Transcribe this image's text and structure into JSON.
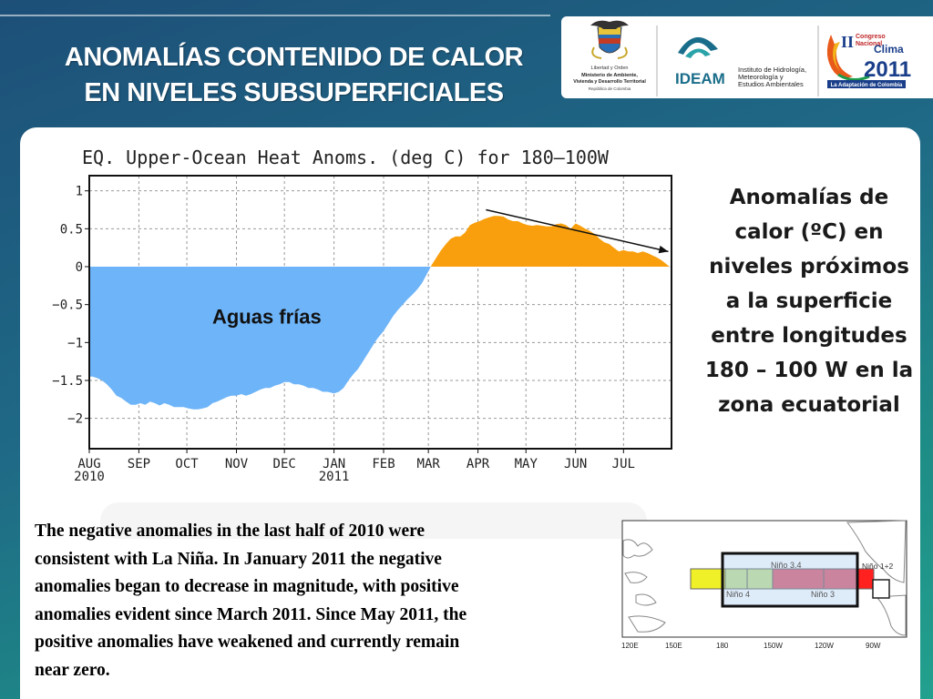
{
  "slide": {
    "title_line1": "ANOMALÍAS CONTENIDO DE CALOR",
    "title_line2": "EN NIVELES SUBSUPERFICIALES"
  },
  "logos": {
    "ministry": {
      "lines": [
        "Libertad y Orden",
        "Ministerio de Ambiente,",
        "Vivienda y Desarrollo Territorial",
        "República de Colombia"
      ],
      "icon": "coat-of-arms-icon"
    },
    "ideam": {
      "name": "IDEAM",
      "subtitle_lines": [
        "Instituto de Hidrología,",
        "Meteorología y",
        "Estudios Ambientales"
      ],
      "icon": "ideam-eye-icon",
      "color": "#1a6d8a"
    },
    "congreso": {
      "numeral": "II",
      "line1": "Congreso",
      "line2": "Nacional",
      "line3": "Clima",
      "year": "2011",
      "banner": "La Adaptación de Colombia",
      "icon": "congreso-clima-icon"
    }
  },
  "chart_data": {
    "type": "area",
    "title": "EQ. Upper-Ocean Heat Anoms. (deg C) for 180–100W",
    "xlabel": "",
    "ylabel": "",
    "x_range": [
      "2010-08-01",
      "2011-07-31"
    ],
    "ylim": [
      -2.4,
      1.2
    ],
    "yticks": [
      1,
      0.5,
      0,
      -0.5,
      -1,
      -1.5,
      -2
    ],
    "ytick_labels": [
      "1",
      "0.5",
      "0",
      "−0.5",
      "−1",
      "−1.5",
      "−2"
    ],
    "xticks": [
      "2010-08-01",
      "2010-09-01",
      "2010-10-01",
      "2010-11-01",
      "2010-12-01",
      "2011-01-01",
      "2011-02-01",
      "2011-03-01",
      "2011-04-01",
      "2011-05-01",
      "2011-06-01",
      "2011-07-01"
    ],
    "xtick_labels": [
      "AUG",
      "SEP",
      "OCT",
      "NOV",
      "DEC",
      "JAN",
      "FEB",
      "MAR",
      "APR",
      "MAY",
      "JUN",
      "JUL"
    ],
    "year_labels": [
      {
        "at": "2010-08-01",
        "text": "2010"
      },
      {
        "at": "2011-01-01",
        "text": "2011"
      }
    ],
    "grid": true,
    "positive_color": "#f99f0d",
    "negative_color": "#6eb4f8",
    "series": [
      {
        "x": [
          "2010-08-01",
          "2010-08-03",
          "2010-08-06",
          "2010-08-09",
          "2010-08-12",
          "2010-08-15",
          "2010-08-18",
          "2010-08-21",
          "2010-08-24",
          "2010-08-27",
          "2010-08-30",
          "2010-09-02",
          "2010-09-05",
          "2010-09-08",
          "2010-09-11",
          "2010-09-14",
          "2010-09-17",
          "2010-09-20",
          "2010-09-23",
          "2010-09-26",
          "2010-09-29",
          "2010-10-02",
          "2010-10-05",
          "2010-10-08",
          "2010-10-11",
          "2010-10-14",
          "2010-10-17",
          "2010-10-20",
          "2010-10-23",
          "2010-10-26",
          "2010-10-29",
          "2010-11-01",
          "2010-11-04",
          "2010-11-07",
          "2010-11-10",
          "2010-11-13",
          "2010-11-16",
          "2010-11-19",
          "2010-11-22",
          "2010-11-25",
          "2010-11-28",
          "2010-12-01",
          "2010-12-04",
          "2010-12-07",
          "2010-12-10",
          "2010-12-13",
          "2010-12-16",
          "2010-12-19",
          "2010-12-22",
          "2010-12-25",
          "2010-12-28",
          "2011-01-01",
          "2011-01-04",
          "2011-01-07",
          "2011-01-10",
          "2011-01-13",
          "2011-01-16",
          "2011-01-19",
          "2011-01-22",
          "2011-01-25",
          "2011-01-28",
          "2011-02-01",
          "2011-02-04",
          "2011-02-07",
          "2011-02-10",
          "2011-02-13",
          "2011-02-16",
          "2011-02-19",
          "2011-02-22",
          "2011-02-25",
          "2011-02-28",
          "2011-03-03",
          "2011-03-06",
          "2011-03-09",
          "2011-03-12",
          "2011-03-15",
          "2011-03-18",
          "2011-03-21",
          "2011-03-24",
          "2011-03-27",
          "2011-03-30",
          "2011-04-02",
          "2011-04-05",
          "2011-04-08",
          "2011-04-11",
          "2011-04-14",
          "2011-04-17",
          "2011-04-20",
          "2011-04-23",
          "2011-04-26",
          "2011-04-29",
          "2011-05-02",
          "2011-05-05",
          "2011-05-08",
          "2011-05-11",
          "2011-05-14",
          "2011-05-17",
          "2011-05-20",
          "2011-05-23",
          "2011-05-26",
          "2011-05-29",
          "2011-06-01",
          "2011-06-04",
          "2011-06-07",
          "2011-06-10",
          "2011-06-13",
          "2011-06-16",
          "2011-06-19",
          "2011-06-22",
          "2011-06-25",
          "2011-06-28",
          "2011-07-01",
          "2011-07-04",
          "2011-07-07",
          "2011-07-10",
          "2011-07-13",
          "2011-07-16",
          "2011-07-19",
          "2011-07-22",
          "2011-07-25",
          "2011-07-28",
          "2011-07-31"
        ],
        "y": [
          -1.45,
          -1.45,
          -1.47,
          -1.5,
          -1.55,
          -1.62,
          -1.7,
          -1.73,
          -1.78,
          -1.82,
          -1.82,
          -1.8,
          -1.82,
          -1.78,
          -1.8,
          -1.83,
          -1.8,
          -1.82,
          -1.85,
          -1.85,
          -1.85,
          -1.87,
          -1.88,
          -1.88,
          -1.87,
          -1.85,
          -1.8,
          -1.78,
          -1.75,
          -1.72,
          -1.7,
          -1.7,
          -1.68,
          -1.7,
          -1.68,
          -1.65,
          -1.62,
          -1.6,
          -1.6,
          -1.57,
          -1.55,
          -1.52,
          -1.52,
          -1.55,
          -1.55,
          -1.57,
          -1.6,
          -1.6,
          -1.62,
          -1.65,
          -1.65,
          -1.67,
          -1.65,
          -1.6,
          -1.5,
          -1.42,
          -1.35,
          -1.25,
          -1.15,
          -1.05,
          -0.95,
          -0.85,
          -0.75,
          -0.65,
          -0.57,
          -0.5,
          -0.43,
          -0.37,
          -0.3,
          -0.22,
          -0.1,
          0.02,
          0.12,
          0.22,
          0.3,
          0.37,
          0.4,
          0.4,
          0.45,
          0.55,
          0.58,
          0.6,
          0.63,
          0.65,
          0.67,
          0.67,
          0.66,
          0.62,
          0.6,
          0.6,
          0.57,
          0.55,
          0.54,
          0.55,
          0.54,
          0.53,
          0.53,
          0.56,
          0.57,
          0.55,
          0.5,
          0.57,
          0.54,
          0.5,
          0.47,
          0.43,
          0.37,
          0.32,
          0.3,
          0.25,
          0.2,
          0.22,
          0.2,
          0.2,
          0.18,
          0.2,
          0.18,
          0.15,
          0.12,
          0.08,
          0.03,
          -0.02
        ]
      }
    ],
    "trend_arrow": {
      "from": {
        "x": "2011-04-06",
        "y": 0.75
      },
      "to": {
        "x": "2011-07-29",
        "y": 0.2
      }
    },
    "annotation": "Aguas frías"
  },
  "side_note": {
    "lines": [
      "Anomalías de",
      "calor (ºC) en",
      "niveles próximos",
      "a la superficie",
      "entre longitudes",
      "180 – 100 W en la",
      "zona ecuatorial"
    ]
  },
  "description": {
    "lines": [
      "The negative anomalies in the last half of 2010 were",
      "consistent with La Niña.  In January 2011 the negative",
      "anomalies began to decrease in magnitude, with positive",
      "anomalies evident since March 2011.  Since May 2011, the",
      "positive anomalies have weakened and currently remain",
      "near zero."
    ]
  },
  "region_map": {
    "lon_labels": [
      "120E",
      "150E",
      "180",
      "150W",
      "120W",
      "90W"
    ],
    "regions": [
      {
        "name": "Niño 3.4",
        "color": "#b8d8f0"
      },
      {
        "name": "Niño 4",
        "color": "#c8e090"
      },
      {
        "name": "Niño 3",
        "color": "#e06070"
      },
      {
        "name": "Niño 1+2",
        "color": "#ff2020"
      }
    ],
    "west_color": "#f0f028"
  }
}
